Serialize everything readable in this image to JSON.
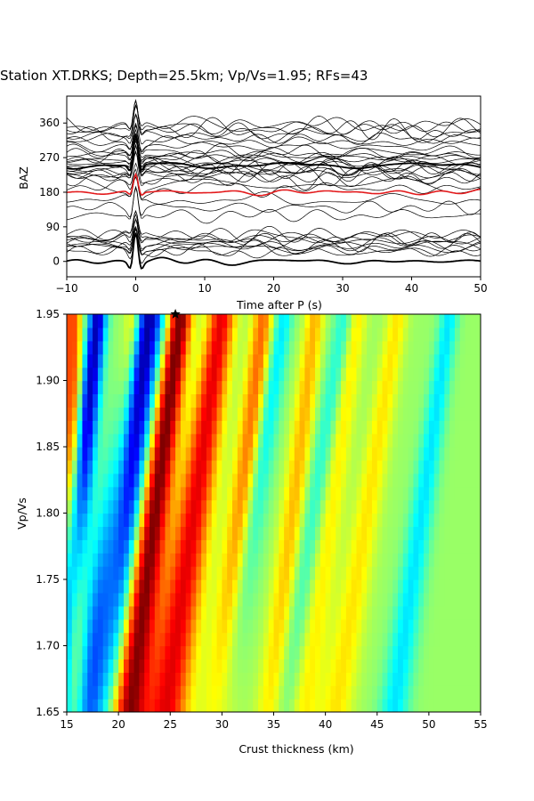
{
  "title": "Station XT.DRKS; Depth=25.5km; Vp/Vs=1.95; RFs=43",
  "chart_data": [
    {
      "type": "line",
      "panel": "waveforms",
      "xlabel": "Time after P (s)",
      "ylabel": "BAZ",
      "xlim": [
        -10,
        50
      ],
      "ylim": [
        -40,
        430
      ],
      "xticks": [
        "−10",
        "0",
        "10",
        "20",
        "30",
        "40",
        "50"
      ],
      "yticks": [
        "0",
        "90",
        "180",
        "270",
        "360"
      ],
      "grid": false,
      "rf_count": 43,
      "baz_groups": [
        {
          "baz": [
            25,
            30,
            35,
            40,
            45,
            50,
            55,
            60,
            65,
            70
          ],
          "color": "#000000"
        },
        {
          "baz": [
            215,
            220,
            225,
            230,
            235,
            240,
            245,
            250,
            255,
            260,
            265,
            270,
            275,
            280,
            285
          ],
          "color": "#000000"
        },
        {
          "baz": [
            300,
            310,
            320,
            330,
            340,
            345,
            350,
            355
          ],
          "color": "#000000"
        },
        {
          "baz": [
            120,
            140,
            160,
            190,
            200
          ],
          "color": "#000000"
        }
      ],
      "stack_traces": [
        {
          "baz": 0,
          "color": "#000000"
        },
        {
          "baz": 250,
          "color": "#000000"
        },
        {
          "baz": 180,
          "color": "#e31a1c"
        }
      ]
    },
    {
      "type": "heatmap",
      "panel": "h-k stacking",
      "xlabel": "Crust thickness (km)",
      "ylabel": "Vp/Vs",
      "xlim": [
        15,
        55
      ],
      "ylim": [
        1.65,
        1.95
      ],
      "xticks": [
        "15",
        "20",
        "25",
        "30",
        "35",
        "40",
        "45",
        "50",
        "55"
      ],
      "yticks": [
        "1.65",
        "1.70",
        "1.75",
        "1.80",
        "1.85",
        "1.90",
        "1.95"
      ],
      "colormap": "jet",
      "best_fit": {
        "thickness": 25.5,
        "vpvs": 1.95,
        "marker": "star"
      },
      "bands": [
        {
          "h_top": 18,
          "slope": 13,
          "amp": -0.95,
          "width": 0.9
        },
        {
          "h_top": 23,
          "slope": 18,
          "amp": -1.0,
          "width": 1.4
        },
        {
          "h_top": 26,
          "slope": 17,
          "amp": 1.0,
          "width": 1.1
        },
        {
          "h_top": 30,
          "slope": 18,
          "amp": 0.75,
          "width": 1.3
        },
        {
          "h_top": 34,
          "slope": 14,
          "amp": 0.5,
          "width": 1.0
        },
        {
          "h_top": 15.5,
          "slope": 0,
          "amp": 0.6,
          "width": 0.9
        },
        {
          "h_top": 21.5,
          "slope": 11,
          "amp": 0.4,
          "width": 0.8
        },
        {
          "h_top": 39,
          "slope": 14,
          "amp": 0.35,
          "width": 0.9
        },
        {
          "h_top": 43,
          "slope": 18,
          "amp": 0.3,
          "width": 1.0
        },
        {
          "h_top": 47,
          "slope": 20,
          "amp": 0.25,
          "width": 1.0
        },
        {
          "h_top": 36,
          "slope": 20,
          "amp": -0.35,
          "width": 0.9
        },
        {
          "h_top": 42,
          "slope": 20,
          "amp": -0.3,
          "width": 1.0
        },
        {
          "h_top": 52,
          "slope": 18,
          "amp": -0.35,
          "width": 0.9
        }
      ]
    }
  ]
}
